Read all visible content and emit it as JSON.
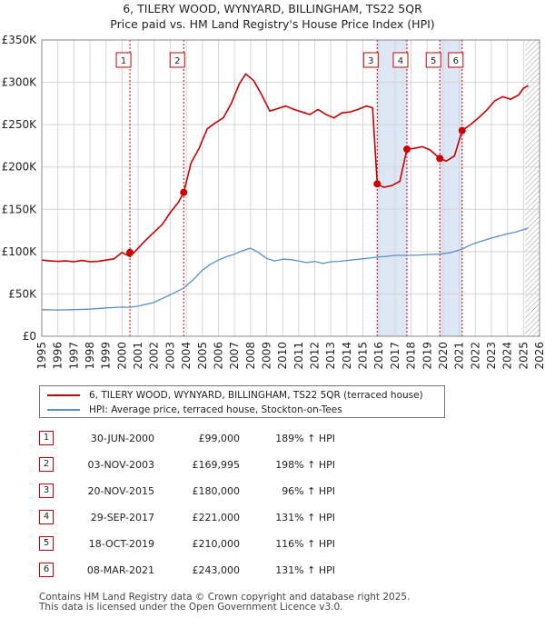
{
  "chart_data": {
    "type": "line",
    "title": "6, TILERY WOOD, WYNYARD, BILLINGHAM, TS22 5QR",
    "subtitle": "Price paid vs. HM Land Registry's House Price Index (HPI)",
    "xlim": [
      1995,
      2026
    ],
    "ylim": [
      0,
      350000
    ],
    "x_ticks": [
      1995,
      1996,
      1997,
      1998,
      1999,
      2000,
      2001,
      2002,
      2003,
      2004,
      2005,
      2006,
      2007,
      2008,
      2009,
      2010,
      2011,
      2012,
      2013,
      2014,
      2015,
      2016,
      2017,
      2018,
      2019,
      2020,
      2021,
      2022,
      2023,
      2024,
      2025,
      2026
    ],
    "y_ticks": [
      {
        "value": 0,
        "label": "£0"
      },
      {
        "value": 50000,
        "label": "£50K"
      },
      {
        "value": 100000,
        "label": "£100K"
      },
      {
        "value": 150000,
        "label": "£150K"
      },
      {
        "value": 200000,
        "label": "£200K"
      },
      {
        "value": 250000,
        "label": "£250K"
      },
      {
        "value": 300000,
        "label": "£300K"
      },
      {
        "value": 350000,
        "label": "£350K"
      }
    ],
    "shaded_ranges": [
      [
        2015.88,
        2017.75
      ],
      [
        2019.8,
        2021.18
      ]
    ],
    "future_hatch_from": 2025.1,
    "series": [
      {
        "name": "6, TILERY WOOD, WYNYARD, BILLINGHAM, TS22 5QR (terraced house)",
        "color": "#cc0000",
        "x": [
          1995,
          1995.5,
          1996,
          1996.5,
          1997,
          1997.5,
          1998,
          1998.5,
          1999,
          1999.5,
          2000,
          2000.5,
          2001,
          2001.5,
          2002,
          2002.5,
          2003,
          2003.5,
          2003.84,
          2004.3,
          2004.8,
          2005.3,
          2005.8,
          2006.3,
          2006.8,
          2007.3,
          2007.7,
          2008.2,
          2008.7,
          2009.2,
          2009.7,
          2010.2,
          2010.7,
          2011.2,
          2011.7,
          2012.2,
          2012.7,
          2013.2,
          2013.7,
          2014.2,
          2014.7,
          2015.2,
          2015.6,
          2015.89,
          2016.3,
          2016.8,
          2017.3,
          2017.74,
          2018.2,
          2018.7,
          2019.2,
          2019.79,
          2020.2,
          2020.7,
          2021.18,
          2021.7,
          2022.2,
          2022.7,
          2023.2,
          2023.7,
          2024.2,
          2024.7,
          2025.0,
          2025.3
        ],
        "y": [
          90000,
          89000,
          88500,
          89000,
          88000,
          89500,
          88000,
          88500,
          90000,
          91500,
          99000,
          94000,
          104000,
          114000,
          123000,
          132000,
          146000,
          158000,
          169995,
          205000,
          222000,
          245000,
          252000,
          258000,
          275000,
          298000,
          310000,
          302000,
          285000,
          266000,
          269000,
          272000,
          268000,
          265000,
          262000,
          268000,
          262000,
          258000,
          264000,
          265000,
          268000,
          272000,
          270000,
          180000,
          176000,
          178000,
          183000,
          221000,
          222000,
          224000,
          220000,
          210000,
          207000,
          213000,
          243000,
          250000,
          258000,
          267000,
          278000,
          283000,
          280000,
          285000,
          293000,
          296000
        ]
      },
      {
        "name": "HPI: Average price, terraced house, Stockton-on-Tees",
        "color": "#5b8fcb",
        "x": [
          1995,
          1996,
          1997,
          1998,
          1999,
          2000,
          2000.5,
          2001,
          2002,
          2003,
          2003.84,
          2004.5,
          2005,
          2005.5,
          2006,
          2006.5,
          2007,
          2007.5,
          2008,
          2008.5,
          2009,
          2009.5,
          2010,
          2010.5,
          2011,
          2011.5,
          2012,
          2012.5,
          2013,
          2013.5,
          2014,
          2014.5,
          2015,
          2015.89,
          2016.5,
          2017,
          2017.74,
          2018.5,
          2019,
          2019.79,
          2020.5,
          2021.18,
          2021.6,
          2022,
          2022.5,
          2023,
          2023.5,
          2024,
          2024.5,
          2025,
          2025.3
        ],
        "y": [
          31500,
          31000,
          31500,
          32000,
          33500,
          34500,
          34200,
          35500,
          40000,
          49000,
          57000,
          68000,
          78000,
          85000,
          90000,
          94000,
          97000,
          101000,
          104000,
          99000,
          92000,
          89000,
          91000,
          90500,
          89000,
          87000,
          88500,
          86000,
          88000,
          88500,
          89500,
          90500,
          91500,
          93500,
          94500,
          95500,
          95500,
          96000,
          96500,
          97000,
          99000,
          103000,
          107000,
          110000,
          113000,
          116000,
          118500,
          121000,
          123000,
          126000,
          128000
        ]
      }
    ],
    "sales": [
      {
        "n": "1",
        "year": 2000.49,
        "price": 99000,
        "date": "30-JUN-2000",
        "price_label": "£99,000",
        "hpi": "189% ↑ HPI"
      },
      {
        "n": "2",
        "year": 2003.84,
        "price": 169995,
        "date": "03-NOV-2003",
        "price_label": "£169,995",
        "hpi": "198% ↑ HPI"
      },
      {
        "n": "3",
        "year": 2015.89,
        "price": 180000,
        "date": "20-NOV-2015",
        "price_label": "£180,000",
        "hpi": "96% ↑ HPI"
      },
      {
        "n": "4",
        "year": 2017.74,
        "price": 221000,
        "date": "29-SEP-2017",
        "price_label": "£221,000",
        "hpi": "131% ↑ HPI"
      },
      {
        "n": "5",
        "year": 2019.79,
        "price": 210000,
        "date": "18-OCT-2019",
        "price_label": "£210,000",
        "hpi": "116% ↑ HPI"
      },
      {
        "n": "6",
        "year": 2021.18,
        "price": 243000,
        "date": "08-MAR-2021",
        "price_label": "£243,000",
        "hpi": "131% ↑ HPI"
      }
    ]
  },
  "legend": {
    "red_label": "6, TILERY WOOD, WYNYARD, BILLINGHAM, TS22 5QR (terraced house)",
    "blue_label": "HPI: Average price, terraced house, Stockton-on-Tees",
    "red_color": "#cc0000",
    "blue_color": "#5b8fcb"
  },
  "footer": {
    "line1": "Contains HM Land Registry data © Crown copyright and database right 2025.",
    "line2": "This data is licensed under the Open Government Licence v3.0."
  }
}
